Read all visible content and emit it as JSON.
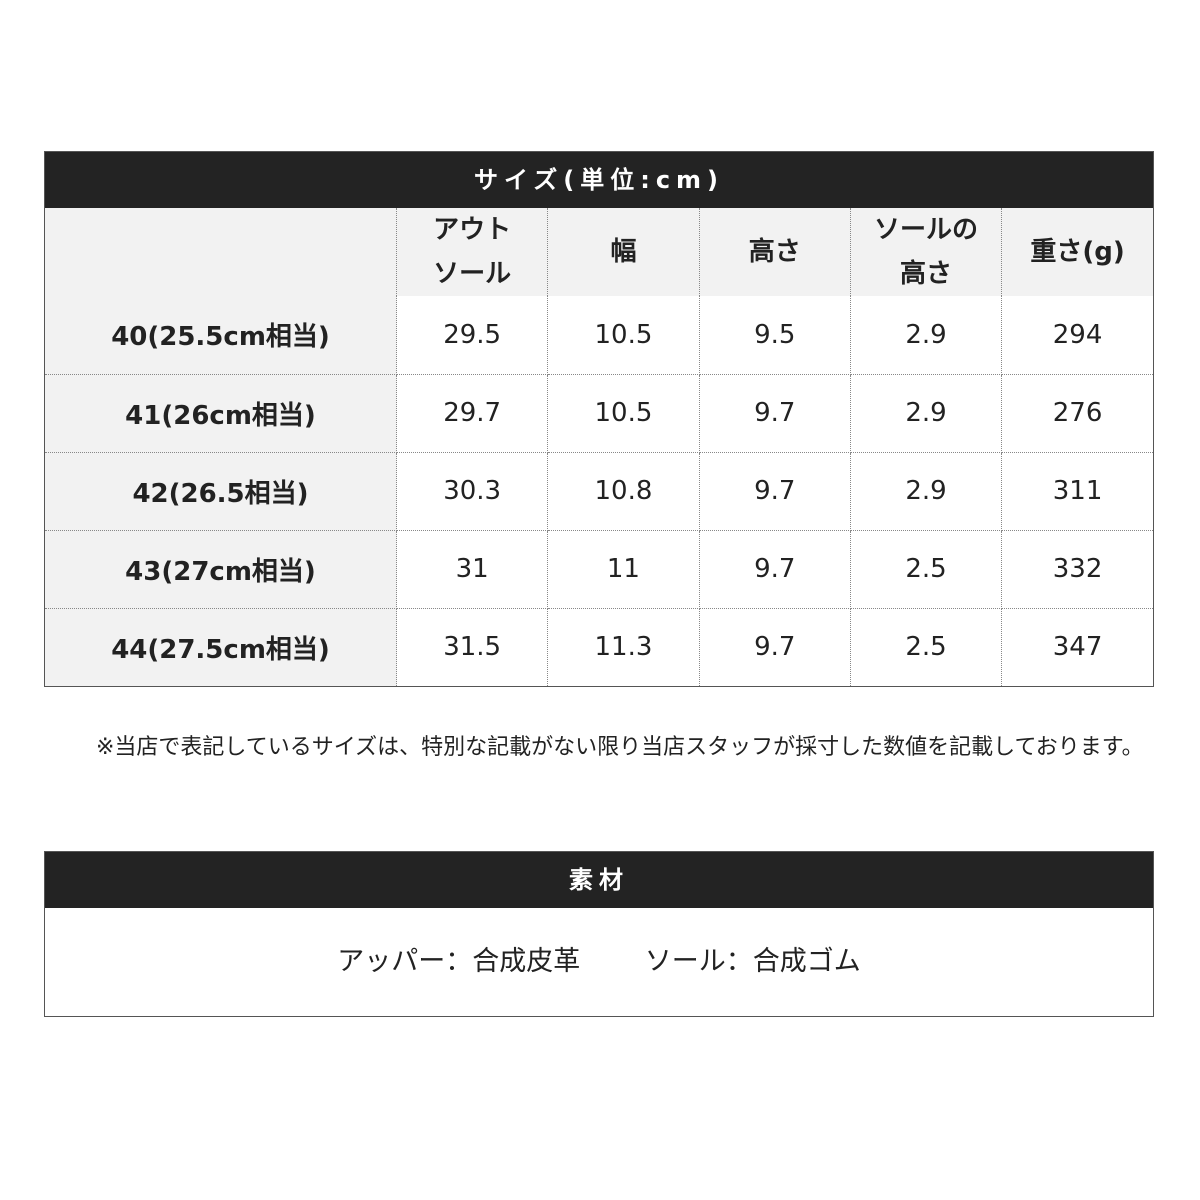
{
  "size_table": {
    "title": "サイズ(単位:cm)",
    "columns": [
      "",
      "アウト\nソール",
      "幅",
      "高さ",
      "ソールの\n高さ",
      "重さ(g)"
    ],
    "rows": [
      {
        "size": "40(25.5cm相当)",
        "values": [
          "29.5",
          "10.5",
          "9.5",
          "2.9",
          "294"
        ]
      },
      {
        "size": "41(26cm相当)",
        "values": [
          "29.7",
          "10.5",
          "9.7",
          "2.9",
          "276"
        ]
      },
      {
        "size": "42(26.5相当)",
        "values": [
          "30.3",
          "10.8",
          "9.7",
          "2.9",
          "311"
        ]
      },
      {
        "size": "43(27cm相当)",
        "values": [
          "31",
          "11",
          "9.7",
          "2.5",
          "332"
        ]
      },
      {
        "size": "44(27.5cm相当)",
        "values": [
          "31.5",
          "11.3",
          "9.7",
          "2.5",
          "347"
        ]
      }
    ]
  },
  "note": "※当店で表記しているサイズは、特別な記載がない限り当店スタッフが採寸した数値を記載しております。",
  "material": {
    "title": "素材",
    "upper": "アッパー：合成皮革",
    "sole": "ソール：合成ゴム"
  }
}
